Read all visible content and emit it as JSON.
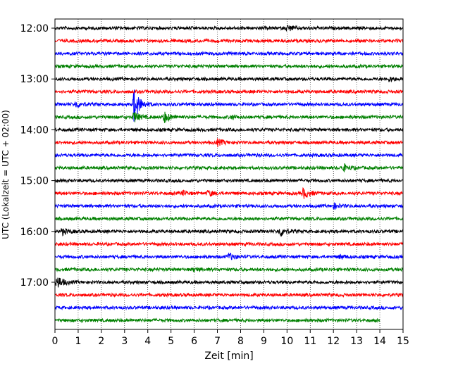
{
  "chart_data": {
    "type": "line",
    "xlabel": "Zeit  [min]",
    "ylabel": "UTC (Lokalzeit = UTC + 02:00)",
    "xlim": [
      0,
      15
    ],
    "x_ticks": [
      0,
      1,
      2,
      3,
      4,
      5,
      6,
      7,
      8,
      9,
      10,
      11,
      12,
      13,
      14,
      15
    ],
    "y_ticks": [
      "12:00",
      "13:00",
      "14:00",
      "15:00",
      "16:00",
      "17:00"
    ],
    "start_time": "12:00",
    "minutes_per_trace": 15,
    "grid": "vertical-dotted",
    "trace_colors": [
      "#000000",
      "#ff0000",
      "#0000ff",
      "#008000"
    ],
    "traces": [
      {
        "start": "12:00",
        "end_min": 15,
        "events": [
          {
            "t": 10.0,
            "amp": 0.45
          }
        ]
      },
      {
        "start": "12:15",
        "end_min": 15,
        "events": []
      },
      {
        "start": "12:30",
        "end_min": 15,
        "events": []
      },
      {
        "start": "12:45",
        "end_min": 15,
        "events": []
      },
      {
        "start": "13:00",
        "end_min": 15,
        "events": [
          {
            "t": 14.4,
            "amp": 0.3
          }
        ]
      },
      {
        "start": "13:15",
        "end_min": 15,
        "events": []
      },
      {
        "start": "13:30",
        "end_min": 15,
        "events": [
          {
            "t": 0.9,
            "amp": 0.5
          },
          {
            "t": 3.4,
            "amp": 2.6
          }
        ]
      },
      {
        "start": "13:45",
        "end_min": 15,
        "events": [
          {
            "t": 3.4,
            "amp": 0.8
          },
          {
            "t": 4.7,
            "amp": 0.9
          },
          {
            "t": 7.6,
            "amp": 0.3
          }
        ]
      },
      {
        "start": "14:00",
        "end_min": 15,
        "events": []
      },
      {
        "start": "14:15",
        "end_min": 15,
        "events": [
          {
            "t": 7.0,
            "amp": 0.5
          }
        ]
      },
      {
        "start": "14:30",
        "end_min": 15,
        "events": []
      },
      {
        "start": "14:45",
        "end_min": 15,
        "events": [
          {
            "t": 12.4,
            "amp": 0.6
          }
        ]
      },
      {
        "start": "15:00",
        "end_min": 15,
        "events": []
      },
      {
        "start": "15:15",
        "end_min": 15,
        "events": [
          {
            "t": 5.5,
            "amp": 0.3
          },
          {
            "t": 6.6,
            "amp": 0.4
          },
          {
            "t": 10.7,
            "amp": 0.8
          }
        ]
      },
      {
        "start": "15:30",
        "end_min": 15,
        "events": [
          {
            "t": 12.0,
            "amp": 0.4
          }
        ]
      },
      {
        "start": "15:45",
        "end_min": 15,
        "events": []
      },
      {
        "start": "16:00",
        "end_min": 15,
        "events": [
          {
            "t": 0.3,
            "amp": 0.5
          },
          {
            "t": 9.7,
            "amp": 0.8
          }
        ]
      },
      {
        "start": "16:15",
        "end_min": 15,
        "events": []
      },
      {
        "start": "16:30",
        "end_min": 15,
        "events": [
          {
            "t": 7.5,
            "amp": 0.5
          },
          {
            "t": 12.3,
            "amp": 0.3
          }
        ]
      },
      {
        "start": "16:45",
        "end_min": 15,
        "events": [
          {
            "t": 6.0,
            "amp": 0.3
          },
          {
            "t": 15.0,
            "amp": 0.4
          }
        ]
      },
      {
        "start": "17:00",
        "end_min": 15,
        "events": [
          {
            "t": 0.1,
            "amp": 1.0
          }
        ]
      },
      {
        "start": "17:15",
        "end_min": 15,
        "events": []
      },
      {
        "start": "17:30",
        "end_min": 15,
        "events": []
      },
      {
        "start": "17:45",
        "end_min": 14,
        "events": []
      }
    ]
  }
}
